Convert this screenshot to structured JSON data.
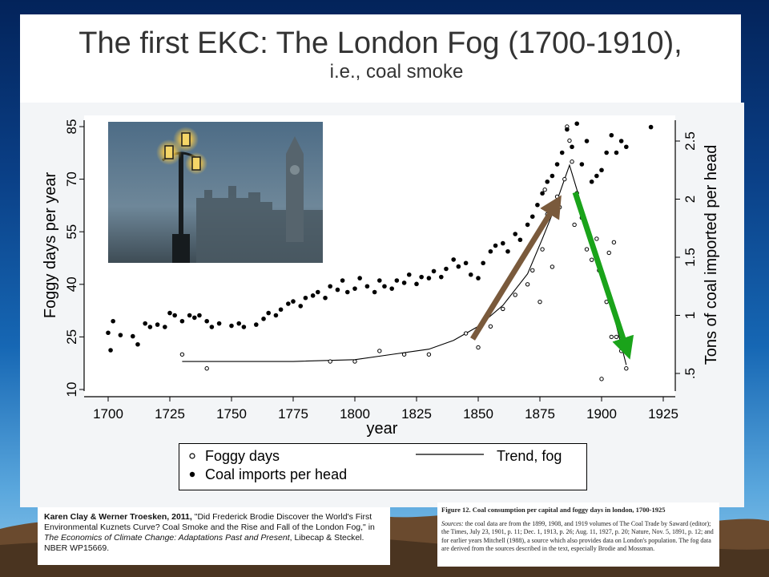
{
  "slide": {
    "title_line1": "The first EKC: The London Fog (1700-1910),",
    "title_line2": "i.e., coal smoke"
  },
  "legend": {
    "foggy_days": "Foggy days",
    "trend_fog": "Trend, fog",
    "coal_imports": "Coal imports per head"
  },
  "credit": {
    "authors": "Karen Clay & Werner Troesken, 2011,",
    "text": " \"Did Frederick Brodie Discover the World's First Environmental Kuznets Curve? Coal Smoke and the Rise and Fall of the London  Fog,\" in ",
    "book": "The Economics of Climate Change: Adaptations Past and Present",
    "tail": ", Libecap & Steckel. NBER WP15669."
  },
  "figure_caption": {
    "title": "Figure 12.  Coal consumption per capital and foggy days in london, 1700-1925",
    "sources_label": "Sources:",
    "sources_text": " the coal data are from the 1899, 1908, and 1919 volumes of The Coal Trade by Saward (editor); the Times, July 23, 1901, p. 11; Dec. 1, 1913, p. 26; Aug. 11, 1927, p. 20; Nature, Nov. 5, 1891, p. 12; and for earlier years Mitchell (1988), a source which also provides data on London's population. The fog data are derived from the sources described in the text, especially Brodie and Mossman."
  },
  "colors": {
    "foggy_marker": "#000000",
    "coal_marker": "#000000",
    "rise_arrow": "#7a5a3c",
    "fall_arrow": "#1aa31a"
  },
  "chart_data": {
    "type": "scatter",
    "xlabel": "year",
    "ylabel_left": "Foggy days per year",
    "ylabel_right": "Tons of coal imported per head",
    "x_ticks": [
      "1700",
      "1725",
      "1750",
      "1775",
      "1800",
      "1825",
      "1850",
      "1875",
      "1900",
      "1925"
    ],
    "y_left_ticks": [
      "10",
      "25",
      "40",
      "55",
      "70",
      "85"
    ],
    "y_right_ticks": [
      ".5",
      "1",
      "1.5",
      "2",
      "2.5"
    ],
    "xlim": [
      1700,
      1925
    ],
    "ylim_left": [
      10,
      85
    ],
    "ylim_right": [
      0.5,
      2.5
    ],
    "series": [
      {
        "name": "Foggy days",
        "marker": "hollow",
        "points": [
          [
            1730,
            20
          ],
          [
            1740,
            16
          ],
          [
            1790,
            18
          ],
          [
            1800,
            18
          ],
          [
            1810,
            21
          ],
          [
            1820,
            20
          ],
          [
            1830,
            20
          ],
          [
            1845,
            26
          ],
          [
            1850,
            22
          ],
          [
            1855,
            28
          ],
          [
            1860,
            33
          ],
          [
            1865,
            37
          ],
          [
            1870,
            40
          ],
          [
            1872,
            44
          ],
          [
            1875,
            35
          ],
          [
            1876,
            50
          ],
          [
            1877,
            67
          ],
          [
            1878,
            60
          ],
          [
            1880,
            45
          ],
          [
            1882,
            65
          ],
          [
            1883,
            62
          ],
          [
            1885,
            70
          ],
          [
            1886,
            85
          ],
          [
            1887,
            81
          ],
          [
            1888,
            75
          ],
          [
            1889,
            57
          ],
          [
            1890,
            66
          ],
          [
            1892,
            59
          ],
          [
            1894,
            50
          ],
          [
            1896,
            47
          ],
          [
            1898,
            53
          ],
          [
            1899,
            44
          ],
          [
            1900,
            13
          ],
          [
            1902,
            35
          ],
          [
            1903,
            49
          ],
          [
            1904,
            25
          ],
          [
            1905,
            52
          ],
          [
            1906,
            25
          ],
          [
            1908,
            21
          ],
          [
            1910,
            16
          ]
        ]
      },
      {
        "name": "Trend, fog",
        "points": [
          [
            1730,
            18
          ],
          [
            1750,
            18
          ],
          [
            1775,
            18
          ],
          [
            1800,
            18.5
          ],
          [
            1815,
            20
          ],
          [
            1830,
            21.5
          ],
          [
            1840,
            24
          ],
          [
            1850,
            28
          ],
          [
            1860,
            34
          ],
          [
            1870,
            43
          ],
          [
            1876,
            53
          ],
          [
            1880,
            60
          ],
          [
            1885,
            70
          ],
          [
            1887,
            74
          ],
          [
            1890,
            67
          ],
          [
            1895,
            55
          ],
          [
            1900,
            43
          ],
          [
            1905,
            31
          ],
          [
            1910,
            17
          ]
        ]
      },
      {
        "name": "Coal imports per head",
        "marker": "filled",
        "points": [
          [
            1700,
            0.85
          ],
          [
            1701,
            0.7
          ],
          [
            1702,
            0.95
          ],
          [
            1705,
            0.83
          ],
          [
            1710,
            0.82
          ],
          [
            1712,
            0.75
          ],
          [
            1715,
            0.93
          ],
          [
            1717,
            0.9
          ],
          [
            1720,
            0.92
          ],
          [
            1723,
            0.9
          ],
          [
            1725,
            1.02
          ],
          [
            1727,
            1.0
          ],
          [
            1730,
            0.95
          ],
          [
            1733,
            1.0
          ],
          [
            1735,
            0.98
          ],
          [
            1737,
            1.0
          ],
          [
            1740,
            0.95
          ],
          [
            1742,
            0.9
          ],
          [
            1745,
            0.93
          ],
          [
            1750,
            0.91
          ],
          [
            1753,
            0.93
          ],
          [
            1755,
            0.9
          ],
          [
            1760,
            0.92
          ],
          [
            1763,
            0.97
          ],
          [
            1765,
            1.02
          ],
          [
            1768,
            1.0
          ],
          [
            1770,
            1.05
          ],
          [
            1773,
            1.1
          ],
          [
            1775,
            1.12
          ],
          [
            1778,
            1.08
          ],
          [
            1780,
            1.15
          ],
          [
            1783,
            1.17
          ],
          [
            1785,
            1.2
          ],
          [
            1788,
            1.15
          ],
          [
            1790,
            1.25
          ],
          [
            1793,
            1.22
          ],
          [
            1795,
            1.3
          ],
          [
            1797,
            1.2
          ],
          [
            1800,
            1.23
          ],
          [
            1802,
            1.32
          ],
          [
            1805,
            1.25
          ],
          [
            1808,
            1.2
          ],
          [
            1810,
            1.3
          ],
          [
            1812,
            1.25
          ],
          [
            1815,
            1.23
          ],
          [
            1817,
            1.3
          ],
          [
            1820,
            1.28
          ],
          [
            1822,
            1.35
          ],
          [
            1825,
            1.27
          ],
          [
            1827,
            1.33
          ],
          [
            1830,
            1.32
          ],
          [
            1832,
            1.38
          ],
          [
            1835,
            1.33
          ],
          [
            1837,
            1.4
          ],
          [
            1840,
            1.48
          ],
          [
            1842,
            1.42
          ],
          [
            1845,
            1.45
          ],
          [
            1847,
            1.35
          ],
          [
            1850,
            1.32
          ],
          [
            1852,
            1.45
          ],
          [
            1855,
            1.55
          ],
          [
            1857,
            1.6
          ],
          [
            1860,
            1.62
          ],
          [
            1862,
            1.55
          ],
          [
            1865,
            1.7
          ],
          [
            1867,
            1.65
          ],
          [
            1870,
            1.78
          ],
          [
            1872,
            1.85
          ],
          [
            1874,
            1.95
          ],
          [
            1876,
            2.05
          ],
          [
            1878,
            2.15
          ],
          [
            1880,
            2.2
          ],
          [
            1882,
            2.3
          ],
          [
            1884,
            2.4
          ],
          [
            1886,
            2.6
          ],
          [
            1888,
            2.45
          ],
          [
            1890,
            2.65
          ],
          [
            1892,
            2.3
          ],
          [
            1894,
            2.5
          ],
          [
            1896,
            2.15
          ],
          [
            1898,
            2.2
          ],
          [
            1900,
            2.25
          ],
          [
            1902,
            2.4
          ],
          [
            1904,
            2.55
          ],
          [
            1906,
            2.4
          ],
          [
            1908,
            2.5
          ],
          [
            1910,
            2.45
          ],
          [
            1920,
            2.62
          ]
        ]
      }
    ],
    "grid": false,
    "legend_placement": "below"
  }
}
